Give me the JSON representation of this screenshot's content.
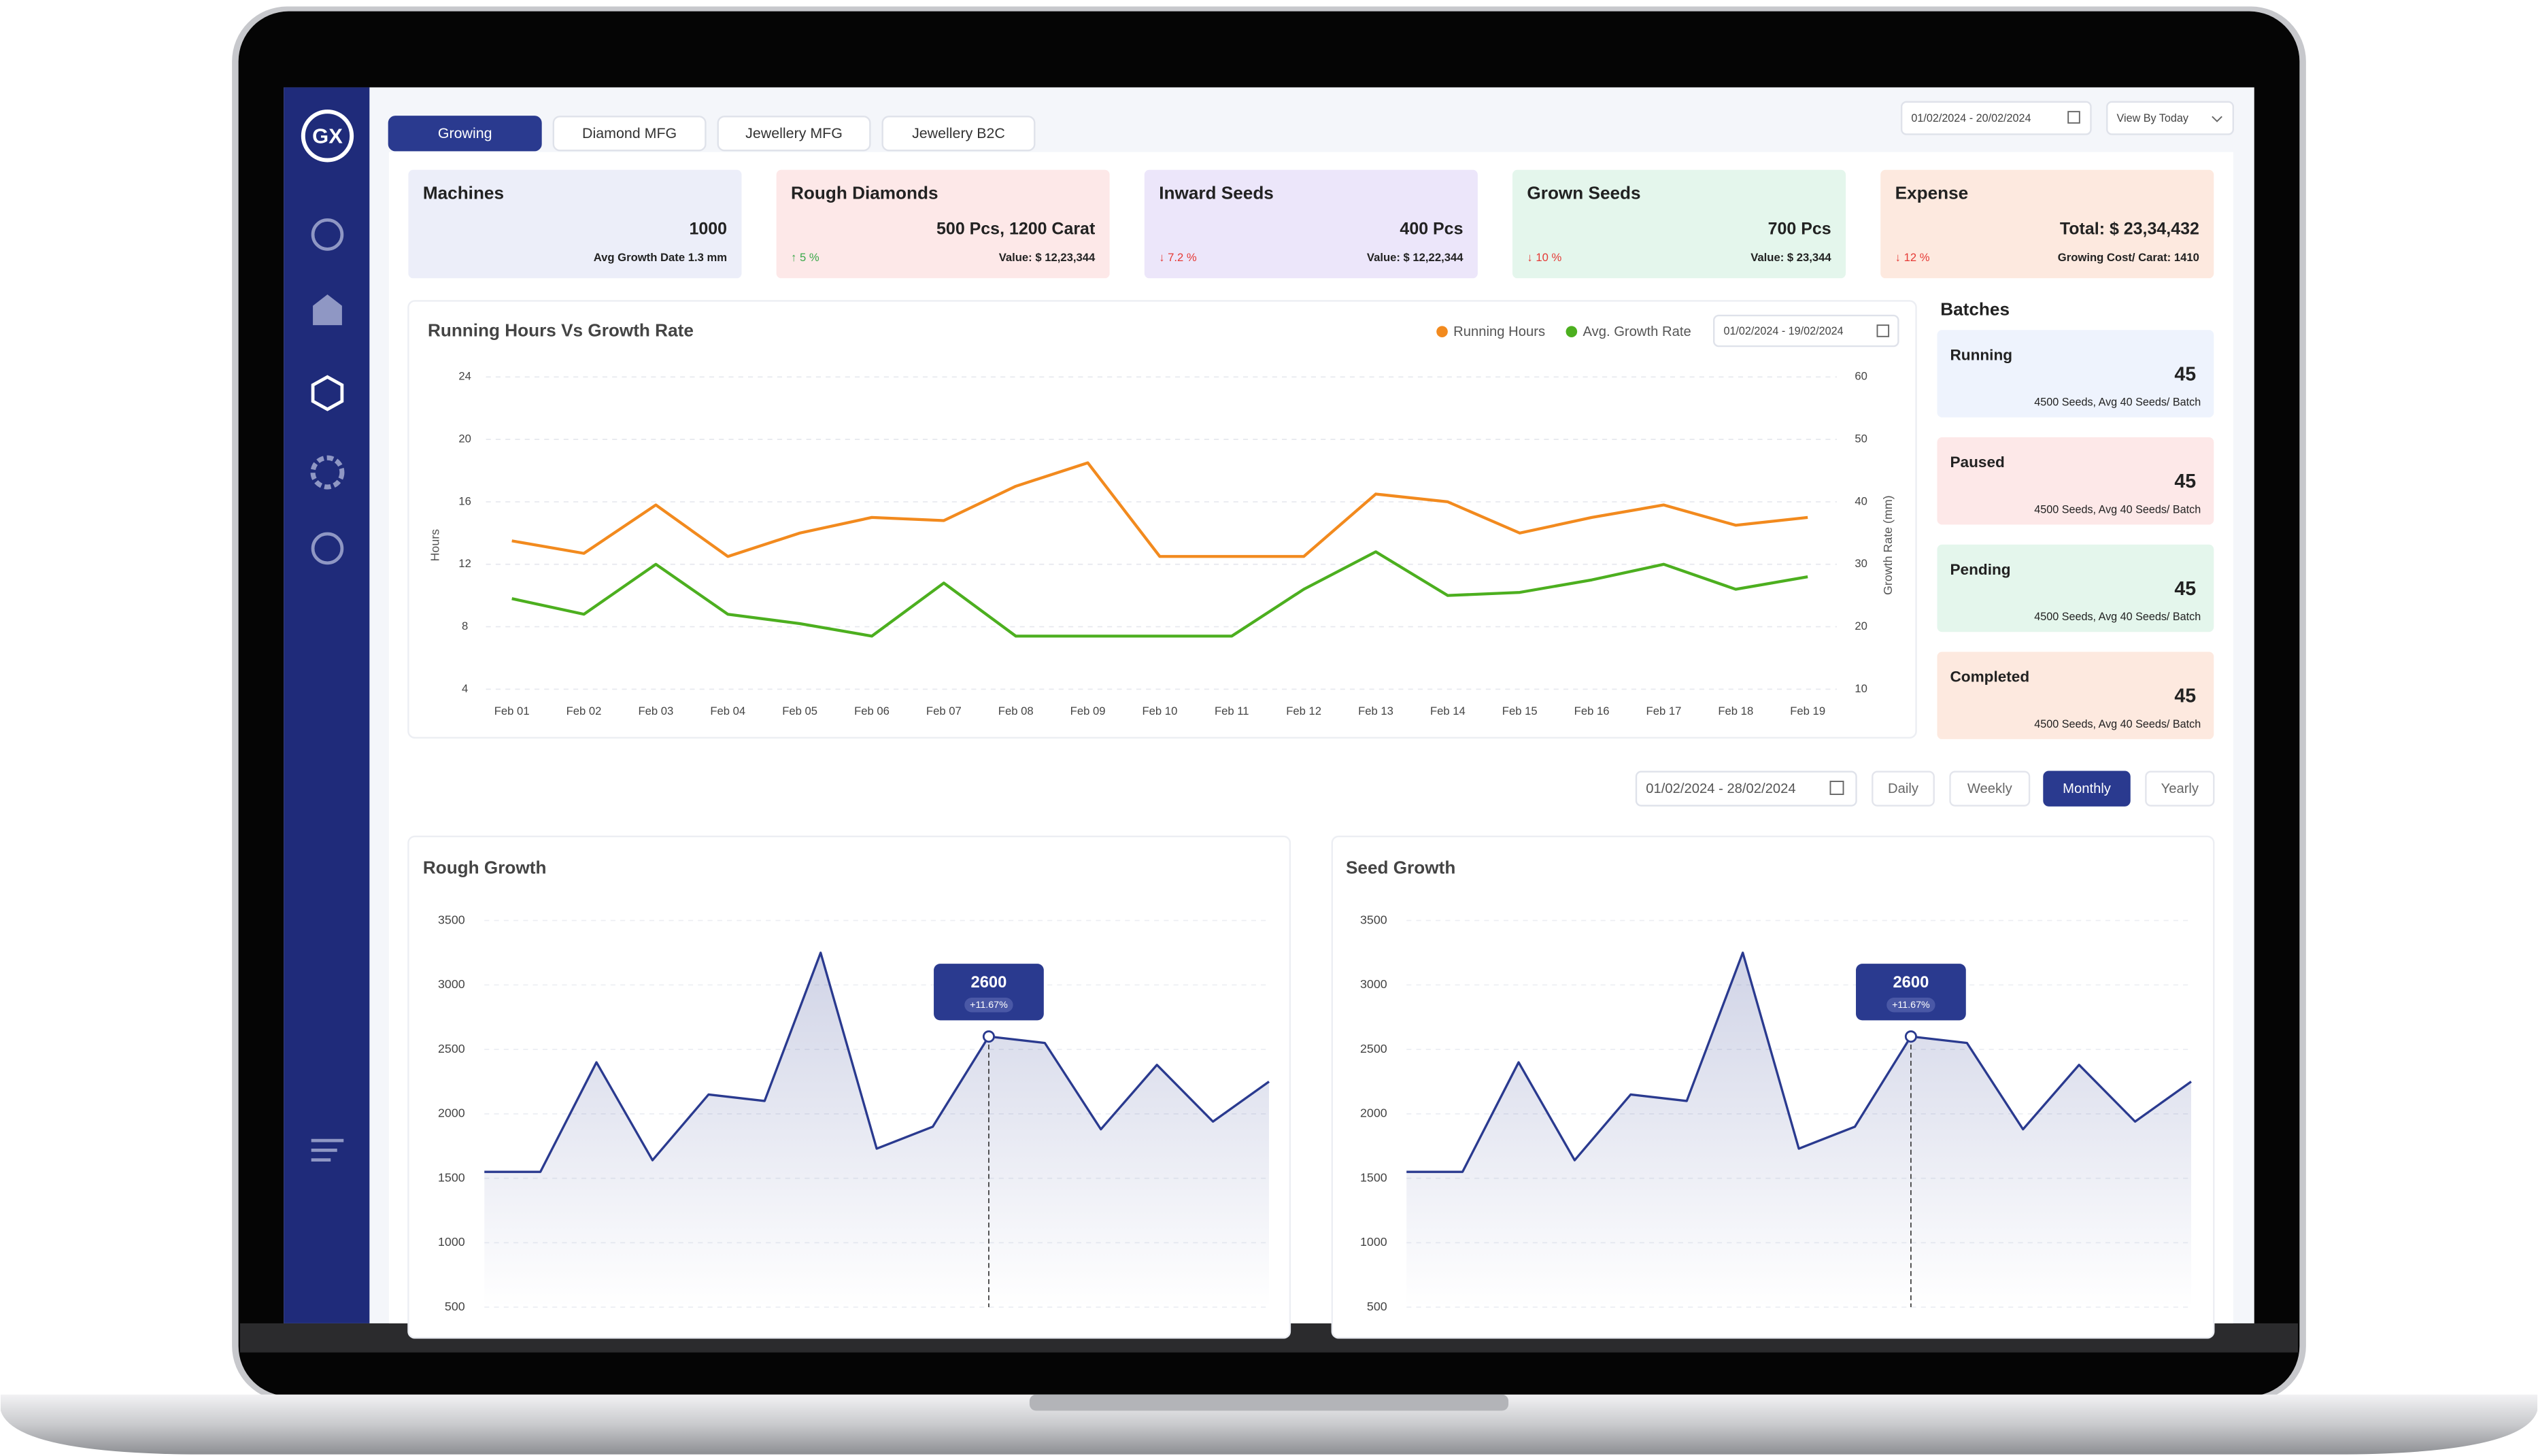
{
  "logo": "GX",
  "tabs": [
    {
      "label": "Growing",
      "active": true
    },
    {
      "label": "Diamond MFG",
      "active": false
    },
    {
      "label": "Jewellery MFG",
      "active": false
    },
    {
      "label": "Jewellery B2C",
      "active": false
    }
  ],
  "header": {
    "date_range": "01/02/2024 - 20/02/2024",
    "view_by": "View By Today"
  },
  "kpis": [
    {
      "title": "Machines",
      "value": 1000,
      "detail": "Avg Growth Date 1.3 mm",
      "color": "#eceef9"
    },
    {
      "title": "Rough Diamonds",
      "value": "500 Pcs, 1200 Carat",
      "change": "↑ 5 %",
      "change_color": "#3aa84a",
      "detail": "Value: $ 12,23,344",
      "color": "#fde8e8"
    },
    {
      "title": "Inward Seeds",
      "value": "400 Pcs",
      "change": "↓ 7.2 %",
      "change_color": "#e53935",
      "detail": "Value: $ 12,22,344",
      "color": "#ece6fa"
    },
    {
      "title": "Grown Seeds",
      "value": "700 Pcs",
      "change": "↓ 10 %",
      "change_color": "#e53935",
      "detail": "Value: $ 23,344",
      "color": "#e4f6ec"
    },
    {
      "title": "Expense",
      "value": "Total: $ 23,34,432",
      "change": "↓ 12 %",
      "change_color": "#e53935",
      "detail": "Growing Cost/ Carat: 1410",
      "color": "#fde9df"
    }
  ],
  "line_chart": {
    "type": "line",
    "title": "Running Hours Vs Growth Rate",
    "date_range": "01/02/2024 - 19/02/2024",
    "categories": [
      "Feb 01",
      "Feb 02",
      "Feb 03",
      "Feb 04",
      "Feb 05",
      "Feb 06",
      "Feb 07",
      "Feb 08",
      "Feb 09",
      "Feb 10",
      "Feb 11",
      "Feb 12",
      "Feb 13",
      "Feb 14",
      "Feb 15",
      "Feb 16",
      "Feb 17",
      "Feb 18",
      "Feb 19"
    ],
    "series": [
      {
        "name": "Running Hours",
        "color": "#f28a1e",
        "values": [
          13.5,
          12.7,
          15.8,
          12.5,
          14.0,
          15.0,
          14.8,
          17.0,
          18.5,
          12.5,
          12.5,
          12.5,
          16.5,
          16.0,
          14.0,
          15.0,
          15.8,
          14.5,
          15.0
        ]
      },
      {
        "name": "Avg. Growth Rate",
        "color": "#4caf1f",
        "axis": "y2",
        "values": [
          24.5,
          22,
          30,
          22,
          20.5,
          18.5,
          27,
          18.5,
          18.5,
          18.5,
          18.5,
          26,
          32,
          25,
          25.5,
          27.5,
          30,
          26,
          28
        ]
      }
    ],
    "ylabel": "Hours",
    "y2label": "Growth Rate (mm)",
    "ylim": [
      4,
      24
    ],
    "yticks": [
      4,
      8,
      12,
      16,
      20,
      24
    ],
    "y2lim": [
      10,
      60
    ],
    "y2ticks": [
      10,
      20,
      30,
      40,
      50,
      60
    ],
    "grid": true
  },
  "batches": {
    "title": "Batches",
    "items": [
      {
        "label": "Running",
        "count": 45,
        "detail": "4500 Seeds, Avg 40 Seeds/ Batch",
        "color": "#eef3fd"
      },
      {
        "label": "Paused",
        "count": 45,
        "detail": "4500 Seeds, Avg 40 Seeds/ Batch",
        "color": "#fde8e8"
      },
      {
        "label": "Pending",
        "count": 45,
        "detail": "4500 Seeds, Avg 40 Seeds/ Batch",
        "color": "#e4f6ec"
      },
      {
        "label": "Completed",
        "count": 45,
        "detail": "4500 Seeds, Avg 40 Seeds/ Batch",
        "color": "#fde9df"
      }
    ]
  },
  "period": {
    "date_range": "01/02/2024 - 28/02/2024",
    "options": [
      {
        "label": "Daily",
        "active": false
      },
      {
        "label": "Weekly",
        "active": false
      },
      {
        "label": "Monthly",
        "active": true
      },
      {
        "label": "Yearly",
        "active": false
      }
    ]
  },
  "area_charts": [
    {
      "type": "area",
      "title": "Rough Growth",
      "color": "#2a3a8f",
      "values": [
        1550,
        1550,
        2400,
        1640,
        2150,
        2100,
        3250,
        1730,
        1900,
        2600,
        2550,
        1880,
        2380,
        1940,
        2250
      ],
      "ylim": [
        500,
        3500
      ],
      "yticks": [
        500,
        1000,
        1500,
        2000,
        2500,
        3000,
        3500
      ],
      "grid": true,
      "tooltip": {
        "value": 2600,
        "change": "+11.67%"
      }
    },
    {
      "type": "area",
      "title": "Seed Growth",
      "color": "#2a3a8f",
      "values": [
        1550,
        1550,
        2400,
        1640,
        2150,
        2100,
        3250,
        1730,
        1900,
        2600,
        2550,
        1880,
        2380,
        1940,
        2250
      ],
      "ylim": [
        500,
        3500
      ],
      "yticks": [
        500,
        1000,
        1500,
        2000,
        2500,
        3000,
        3500
      ],
      "grid": true,
      "tooltip": {
        "value": 2600,
        "change": "+11.67%"
      }
    }
  ]
}
